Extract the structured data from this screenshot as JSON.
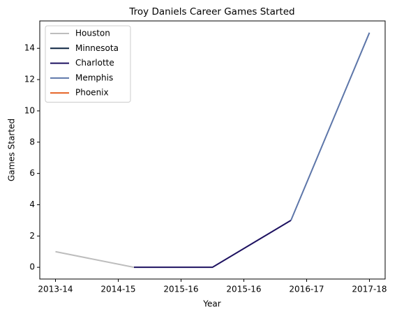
{
  "chart_data": {
    "type": "line",
    "title": "Troy Daniels Career Games Started",
    "xlabel": "Year",
    "ylabel": "Games Started",
    "x": [
      0,
      1,
      2,
      3,
      4
    ],
    "series": [
      {
        "name": "Houston",
        "color": "#bdbdbd",
        "values": [
          1,
          0,
          null,
          null,
          null
        ]
      },
      {
        "name": "Minnesota",
        "color": "#0c2340",
        "values": [
          null,
          null,
          null,
          null,
          null
        ]
      },
      {
        "name": "Charlotte",
        "color": "#1d1160",
        "values": [
          null,
          0,
          0,
          3,
          null
        ]
      },
      {
        "name": "Memphis",
        "color": "#5d76a9",
        "values": [
          null,
          null,
          null,
          3,
          15
        ]
      },
      {
        "name": "Phoenix",
        "color": "#e56020",
        "values": [
          null,
          null,
          null,
          null,
          null
        ]
      }
    ],
    "xlim": [
      -0.2,
      4.2
    ],
    "xticks": [
      {
        "value": 0,
        "label": "2013-14"
      },
      {
        "value": 0.8,
        "label": "2014-15"
      },
      {
        "value": 1.6,
        "label": "2015-16"
      },
      {
        "value": 2.4,
        "label": "2015-16"
      },
      {
        "value": 3.2,
        "label": "2016-17"
      },
      {
        "value": 4,
        "label": "2017-18"
      }
    ],
    "ylim": [
      -0.75,
      15.75
    ],
    "yticks": [
      0,
      2,
      4,
      6,
      8,
      10,
      12,
      14
    ],
    "legend": "upper left",
    "grid": false
  }
}
